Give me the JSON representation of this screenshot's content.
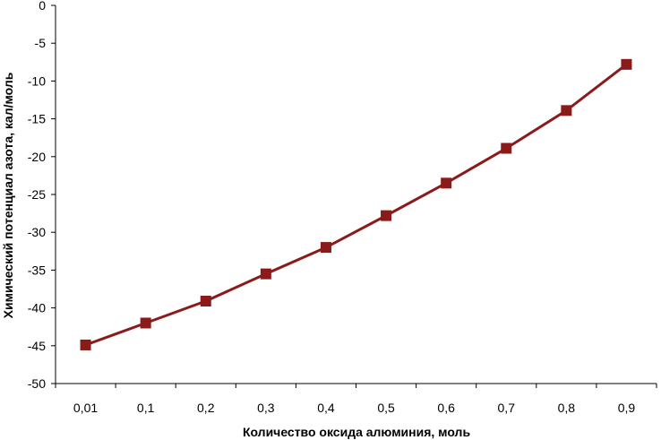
{
  "chart_data": {
    "type": "line",
    "title": "",
    "xlabel": "Количество оксида алюминия, моль",
    "ylabel": "Химический потенциал азота, кал/моль",
    "categories": [
      "0,01",
      "0,1",
      "0,2",
      "0,3",
      "0,4",
      "0,5",
      "0,6",
      "0,7",
      "0,8",
      "0,9"
    ],
    "series": [
      {
        "values": [
          -44.9,
          -42.0,
          -39.1,
          -35.5,
          -32.0,
          -27.8,
          -23.5,
          -18.9,
          -13.9,
          -7.8
        ],
        "color": "#8b1a1a",
        "marker": "square"
      }
    ],
    "ylim": [
      -50,
      0
    ],
    "yticks": [
      0,
      -5,
      -10,
      -15,
      -20,
      -25,
      -30,
      -35,
      -40,
      -45,
      -50
    ],
    "ytick_labels": [
      "0",
      "-5",
      "-10",
      "-15",
      "-20",
      "-25",
      "-30",
      "-35",
      "-40",
      "-45",
      "-50"
    ],
    "grid": false,
    "legend": "none"
  }
}
